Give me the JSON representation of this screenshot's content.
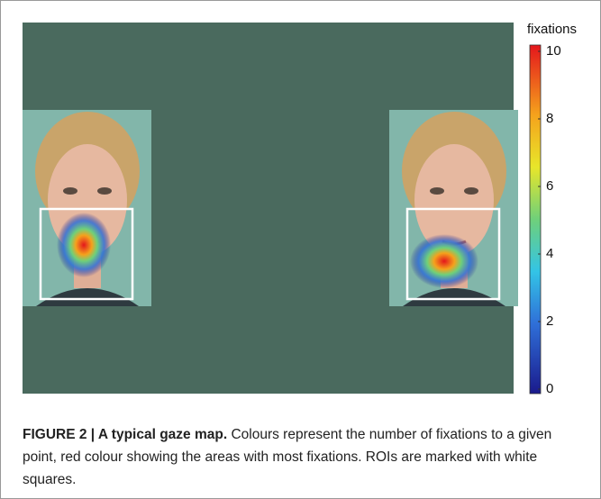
{
  "colorbar": {
    "label": "fixations",
    "lim": [
      0,
      10
    ],
    "ticks": [
      0,
      2,
      4,
      6,
      8,
      10
    ]
  },
  "caption": {
    "label": "FIGURE 2 | A typical gaze map.",
    "text": "Colours represent the number of fixations to a given point, red colour showing the areas with most fixations. ROIs are marked with white squares."
  }
}
